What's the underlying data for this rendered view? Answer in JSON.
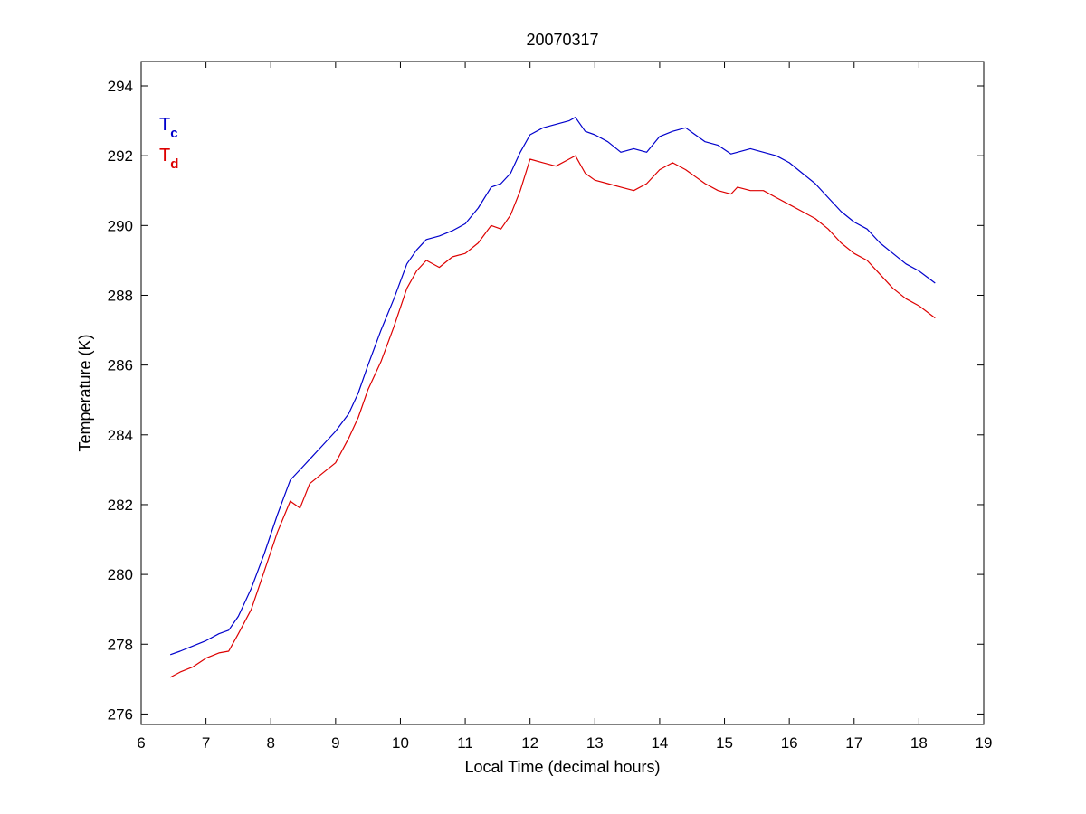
{
  "chart_data": {
    "type": "line",
    "title": "20070317",
    "xlabel": "Local Time (decimal hours)",
    "ylabel": "Temperature (K)",
    "xlim": [
      6,
      19
    ],
    "ylim": [
      275.7,
      294.7
    ],
    "xticks": [
      6,
      7,
      8,
      9,
      10,
      11,
      12,
      13,
      14,
      15,
      16,
      17,
      18,
      19
    ],
    "yticks": [
      276,
      278,
      280,
      282,
      284,
      286,
      288,
      290,
      292,
      294
    ],
    "grid": false,
    "legend_position": "top-left",
    "legend": [
      {
        "main": "T",
        "sub": "c",
        "color": "#0000cc"
      },
      {
        "main": "T",
        "sub": "d",
        "color": "#dd0000"
      }
    ],
    "series": [
      {
        "color": "#0000cc",
        "x": [
          6.45,
          6.6,
          6.8,
          7.0,
          7.2,
          7.35,
          7.5,
          7.7,
          7.9,
          8.1,
          8.3,
          8.45,
          8.6,
          8.8,
          9.0,
          9.2,
          9.35,
          9.5,
          9.7,
          9.9,
          10.1,
          10.25,
          10.4,
          10.6,
          10.8,
          11.0,
          11.2,
          11.4,
          11.55,
          11.7,
          11.85,
          12.0,
          12.2,
          12.4,
          12.6,
          12.7,
          12.85,
          13.0,
          13.2,
          13.4,
          13.6,
          13.8,
          14.0,
          14.2,
          14.4,
          14.55,
          14.7,
          14.9,
          15.1,
          15.2,
          15.4,
          15.6,
          15.8,
          16.0,
          16.2,
          16.4,
          16.6,
          16.8,
          17.0,
          17.2,
          17.4,
          17.6,
          17.8,
          18.0,
          18.25
        ],
        "y": [
          277.7,
          277.8,
          277.95,
          278.1,
          278.3,
          278.4,
          278.8,
          279.6,
          280.6,
          281.7,
          282.7,
          283.0,
          283.3,
          283.7,
          284.1,
          284.6,
          285.2,
          286.0,
          287.0,
          287.9,
          288.9,
          289.3,
          289.6,
          289.7,
          289.85,
          290.05,
          290.5,
          291.1,
          291.2,
          291.5,
          292.1,
          292.6,
          292.8,
          292.9,
          293.0,
          293.1,
          292.7,
          292.6,
          292.4,
          292.1,
          292.2,
          292.1,
          292.55,
          292.7,
          292.8,
          292.6,
          292.4,
          292.3,
          292.05,
          292.1,
          292.2,
          292.1,
          292.0,
          291.8,
          291.5,
          291.2,
          290.8,
          290.4,
          290.1,
          289.9,
          289.5,
          289.2,
          288.9,
          288.7,
          288.35
        ]
      },
      {
        "color": "#dd0000",
        "x": [
          6.45,
          6.6,
          6.8,
          7.0,
          7.2,
          7.35,
          7.5,
          7.7,
          7.9,
          8.1,
          8.3,
          8.45,
          8.6,
          8.8,
          9.0,
          9.2,
          9.35,
          9.5,
          9.7,
          9.9,
          10.1,
          10.25,
          10.4,
          10.6,
          10.8,
          11.0,
          11.2,
          11.4,
          11.55,
          11.7,
          11.85,
          12.0,
          12.2,
          12.4,
          12.6,
          12.7,
          12.85,
          13.0,
          13.2,
          13.4,
          13.6,
          13.8,
          14.0,
          14.2,
          14.4,
          14.55,
          14.7,
          14.9,
          15.1,
          15.2,
          15.4,
          15.6,
          15.8,
          16.0,
          16.2,
          16.4,
          16.6,
          16.8,
          17.0,
          17.2,
          17.4,
          17.6,
          17.8,
          18.0,
          18.25
        ],
        "y": [
          277.05,
          277.2,
          277.35,
          277.6,
          277.75,
          277.8,
          278.3,
          279.0,
          280.1,
          281.2,
          282.1,
          281.9,
          282.6,
          282.9,
          283.2,
          283.9,
          284.5,
          285.3,
          286.1,
          287.1,
          288.2,
          288.7,
          289.0,
          288.8,
          289.1,
          289.2,
          289.5,
          290.0,
          289.9,
          290.3,
          291.0,
          291.9,
          291.8,
          291.7,
          291.9,
          292.0,
          291.5,
          291.3,
          291.2,
          291.1,
          291.0,
          291.2,
          291.6,
          291.8,
          291.6,
          291.4,
          291.2,
          291.0,
          290.9,
          291.1,
          291.0,
          291.0,
          290.8,
          290.6,
          290.4,
          290.2,
          289.9,
          289.5,
          289.2,
          289.0,
          288.6,
          288.2,
          287.9,
          287.7,
          287.35
        ]
      }
    ]
  }
}
